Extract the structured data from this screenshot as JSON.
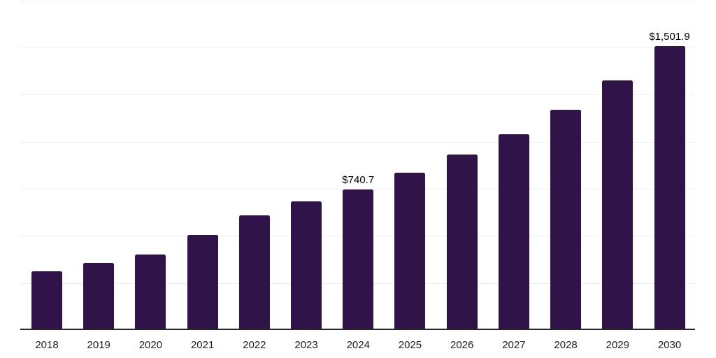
{
  "chart_data": {
    "type": "bar",
    "title": "",
    "xlabel": "",
    "ylabel": "",
    "categories": [
      "2018",
      "2019",
      "2020",
      "2021",
      "2022",
      "2023",
      "2024",
      "2025",
      "2026",
      "2027",
      "2028",
      "2029",
      "2030"
    ],
    "values": [
      306,
      349,
      395,
      498,
      603,
      674,
      740.7,
      827,
      924,
      1033,
      1164,
      1320,
      1501.9
    ],
    "annotations": [
      {
        "category": "2024",
        "text": "$740.7"
      },
      {
        "category": "2030",
        "text": "$1,501.9"
      }
    ],
    "ylim": [
      0,
      1750
    ],
    "grid_step": 250,
    "grid": "horizontal-only",
    "legend": "none",
    "bar_color": "#301348",
    "axis_line_color": "#262626",
    "gridline_color": "#efefef",
    "tick_label_color": "#212121",
    "annotation_color": "#000000"
  }
}
